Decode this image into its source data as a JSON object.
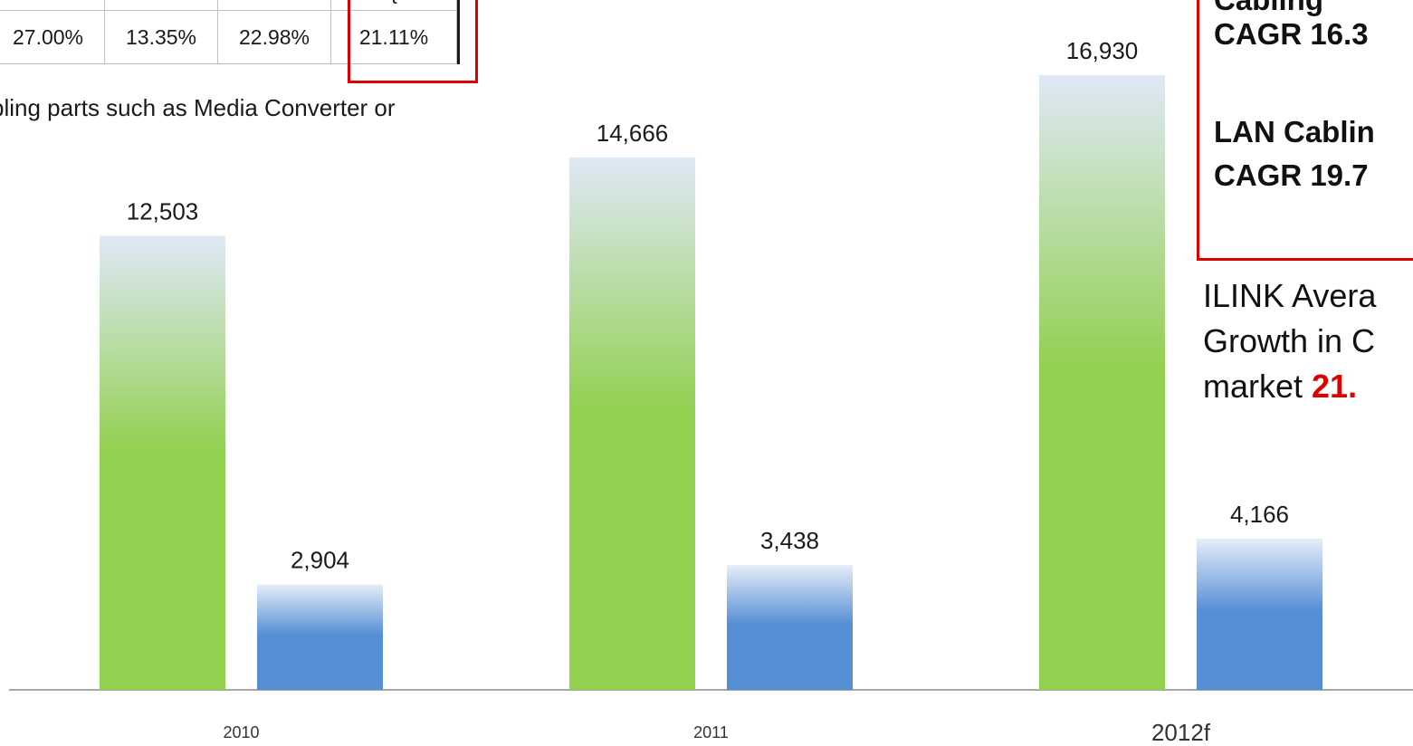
{
  "table": {
    "header_fragments": [
      "",
      "",
      "",
      "{"
    ],
    "cells": [
      "27.00%",
      "13.35%",
      "22.98%",
      "21.11%"
    ]
  },
  "note": "bling parts such as Media Converter or",
  "callout": {
    "line1": "Cabling ",
    "line2": "CAGR 16.3",
    "line3": "LAN Cablin",
    "line4": "CAGR 19.7"
  },
  "side_text": {
    "line1": "ILINK Avera",
    "line2": "Growth in C",
    "line3_prefix": "market ",
    "line3_value": "21."
  },
  "chart_data": {
    "type": "bar",
    "categories": [
      "2010",
      "2011",
      "2012f"
    ],
    "series": [
      {
        "values": [
          12503,
          14666,
          16930
        ],
        "color": "#92d050"
      },
      {
        "values": [
          2904,
          3438,
          4166
        ],
        "color": "#558ed5"
      }
    ],
    "data_labels": [
      [
        "12,503",
        "14,666",
        "16,930"
      ],
      [
        "2,904",
        "3,438",
        "4,166"
      ]
    ],
    "ylim": [
      0,
      19000
    ],
    "grid": false,
    "legend": "none"
  }
}
